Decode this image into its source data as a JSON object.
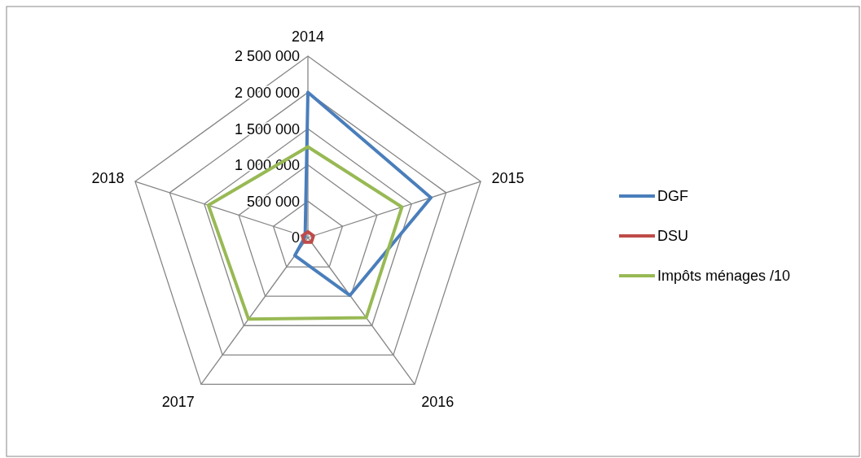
{
  "chart_data": {
    "type": "radar",
    "categories": [
      "2014",
      "2015",
      "2016",
      "2017",
      "2018"
    ],
    "series": [
      {
        "name": "DGF",
        "color": "#4a7ebb",
        "values": [
          2000000,
          1780000,
          985000,
          305000,
          40000
        ]
      },
      {
        "name": "DSU",
        "color": "#be4b48",
        "values": [
          80000,
          80000,
          80000,
          80000,
          80000
        ]
      },
      {
        "name": "Impôts ménages /10",
        "color": "#98b954",
        "values": [
          1250000,
          1360000,
          1365000,
          1390000,
          1440000
        ]
      }
    ],
    "ylim": [
      0,
      2500000
    ],
    "yticks": [
      {
        "value": 0,
        "label": "0"
      },
      {
        "value": 500000,
        "label": "500 000"
      },
      {
        "value": 1000000,
        "label": "1 000 000"
      },
      {
        "value": 1500000,
        "label": "1 500 000"
      },
      {
        "value": 2000000,
        "label": "2 000 000"
      },
      {
        "value": 2500000,
        "label": "2 500 000"
      }
    ],
    "grid": true,
    "legend": "right",
    "line_style": "solid"
  }
}
